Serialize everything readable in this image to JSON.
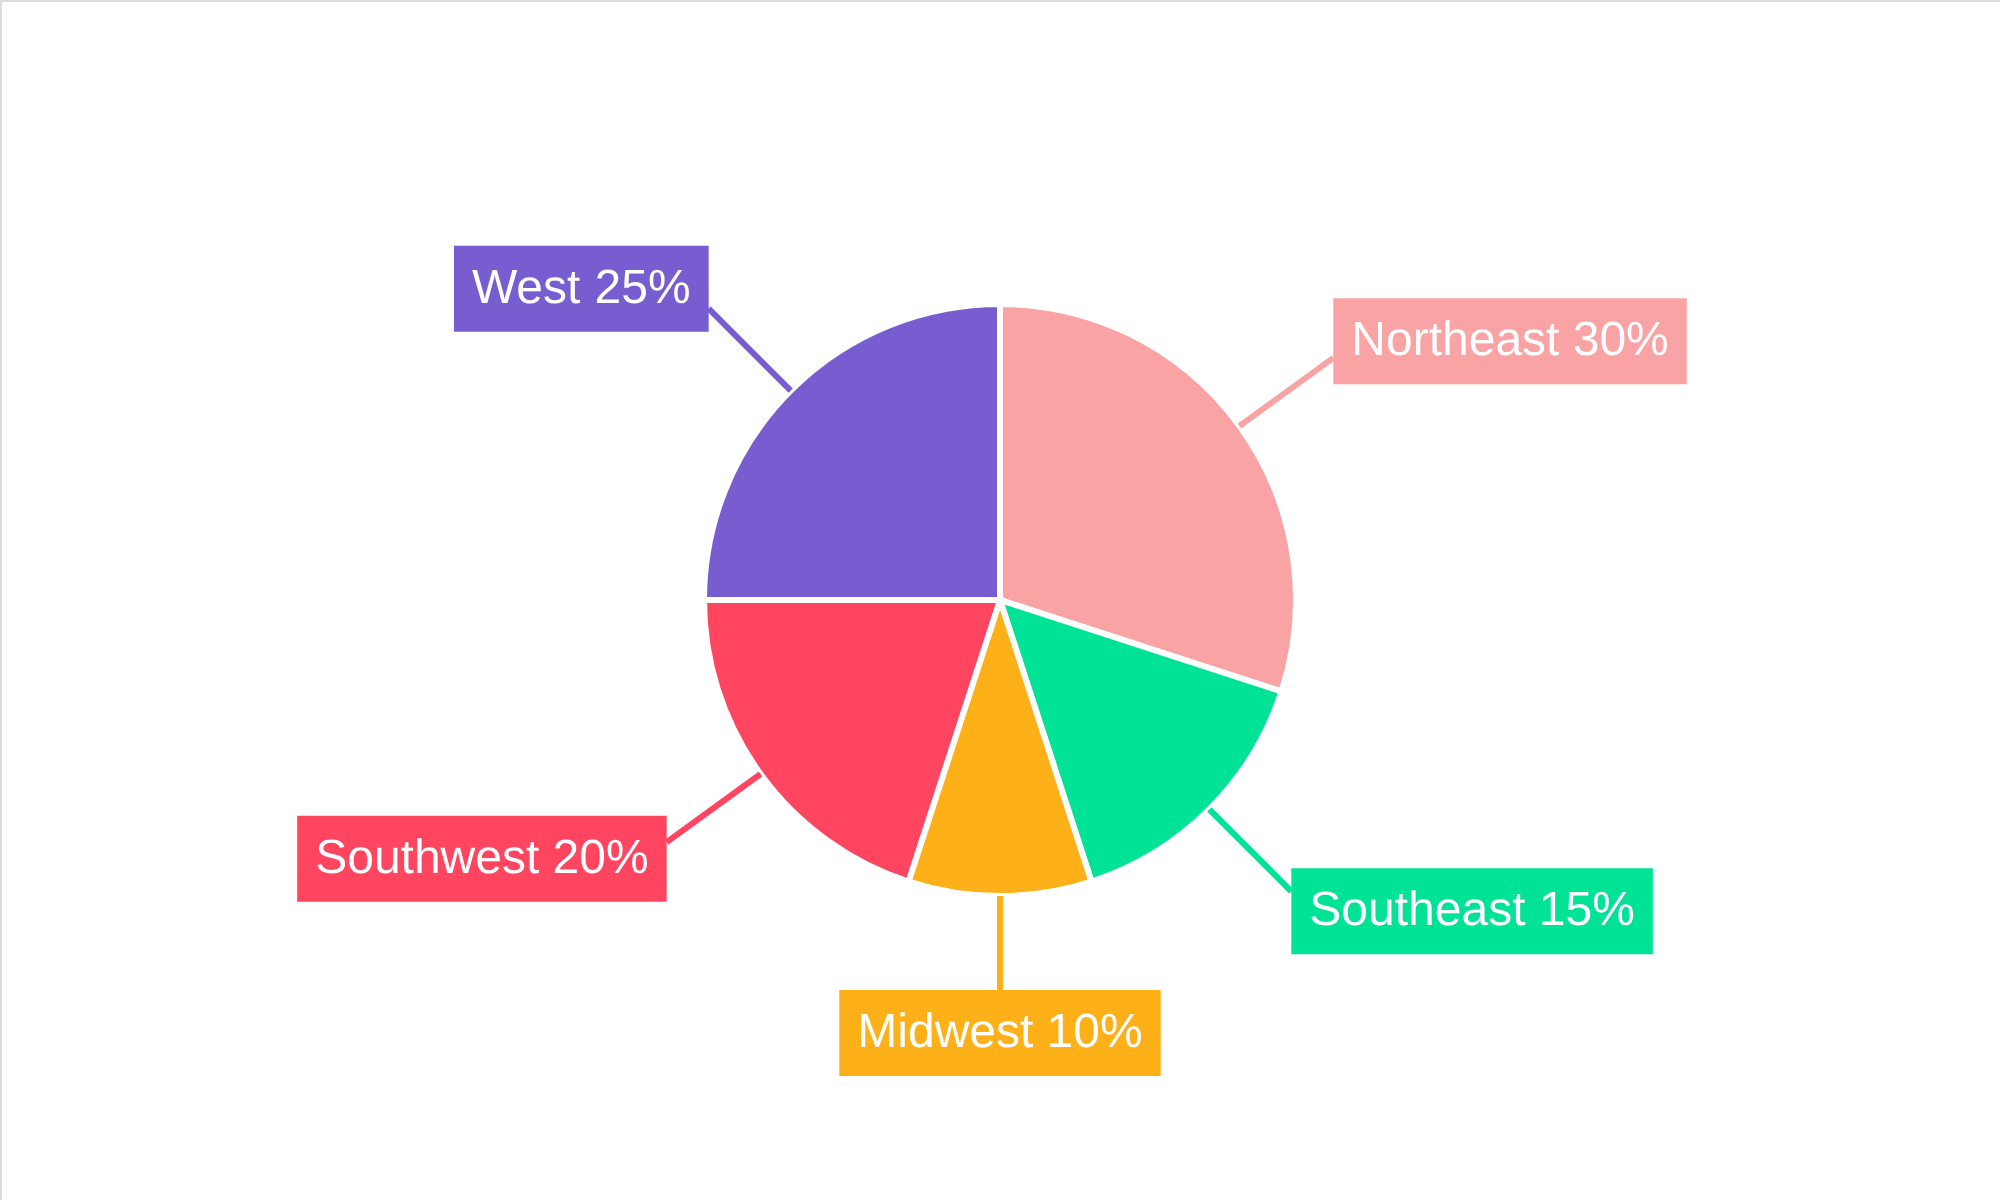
{
  "chart_data": {
    "type": "pie",
    "categories": [
      "Northeast",
      "Southeast",
      "Midwest",
      "Southwest",
      "West"
    ],
    "values": [
      30,
      15,
      10,
      20,
      25
    ],
    "colors": [
      "#f9a3a4",
      "#00e396",
      "#feb019",
      "#ff4560",
      "#775dd0"
    ],
    "value_labels": [
      "30%",
      "15%",
      "10%",
      "20%",
      "25%"
    ]
  }
}
